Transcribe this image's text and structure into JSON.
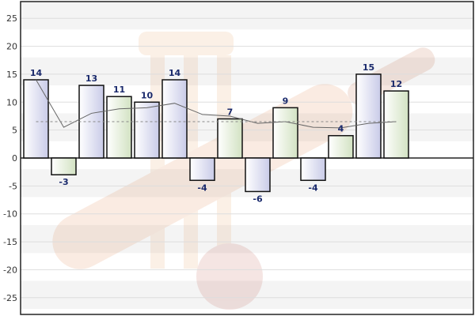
{
  "chart_data": {
    "type": "bar",
    "title": "",
    "xlabel": "",
    "ylabel": "",
    "ylim": [
      -28,
      28
    ],
    "yticks": [
      -25,
      -20,
      -15,
      -10,
      -5,
      0,
      5,
      10,
      15,
      20,
      25
    ],
    "grid": true,
    "legend": "none",
    "values": [
      14,
      -3,
      13,
      11,
      10,
      14,
      -4,
      7,
      -6,
      9,
      -4,
      4,
      15,
      12
    ],
    "series_styles": [
      "violet",
      "green",
      "violet",
      "green",
      "violet",
      "violet",
      "violet",
      "green",
      "violet",
      "green",
      "violet",
      "green",
      "violet",
      "green"
    ],
    "trend_line": [
      14,
      5.5,
      8,
      8.8,
      9,
      9.8,
      7.8,
      7.5,
      6.2,
      6.5,
      5.5,
      5.4,
      6.2,
      6.5
    ],
    "average_line": 6.5,
    "colors": {
      "violet_fill": "#d4d6ee",
      "green_fill": "#dde8d0",
      "bar_stroke": "#111111",
      "label_color": "#1a2a6c",
      "trend_color": "#666666",
      "average_color": "#888888",
      "band_color": "#f4f4f4",
      "grid_color": "#dddddd"
    }
  }
}
